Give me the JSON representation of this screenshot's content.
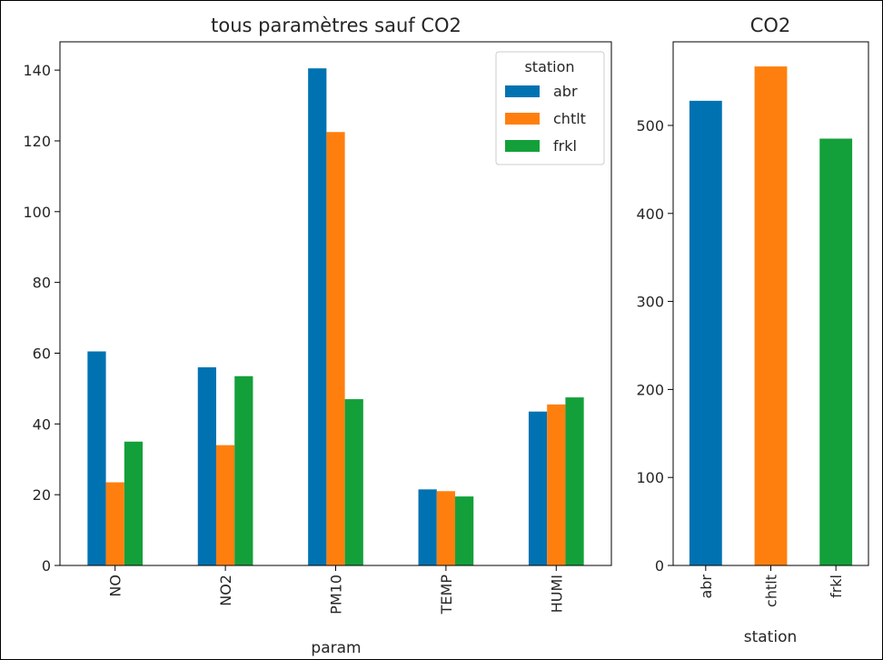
{
  "chart_data": [
    {
      "type": "bar",
      "title": "tous paramètres sauf CO2",
      "xlabel": "param",
      "ylabel": "",
      "categories": [
        "NO",
        "NO2",
        "PM10",
        "TEMP",
        "HUMI"
      ],
      "series": [
        {
          "name": "abr",
          "color": "#0072b2",
          "values": [
            60.5,
            56,
            140.5,
            21.5,
            43.5
          ]
        },
        {
          "name": "chtlt",
          "color": "#ff7f0e",
          "values": [
            23.5,
            34,
            122.5,
            21,
            45.5
          ]
        },
        {
          "name": "frkl",
          "color": "#13a03a",
          "values": [
            35,
            53.5,
            47,
            19.5,
            47.5
          ]
        }
      ],
      "ylim": [
        0,
        148
      ],
      "yticks": [
        0,
        20,
        40,
        60,
        80,
        100,
        120,
        140
      ],
      "legend": {
        "title": "station",
        "position": "top-right"
      },
      "grid": false
    },
    {
      "type": "bar",
      "title": "CO2",
      "xlabel": "station",
      "ylabel": "",
      "categories": [
        "abr",
        "chtlt",
        "frkl"
      ],
      "values": [
        528,
        567,
        485
      ],
      "colors": [
        "#0072b2",
        "#ff7f0e",
        "#13a03a"
      ],
      "ylim": [
        0,
        595
      ],
      "yticks": [
        0,
        100,
        200,
        300,
        400,
        500
      ],
      "grid": false
    }
  ]
}
